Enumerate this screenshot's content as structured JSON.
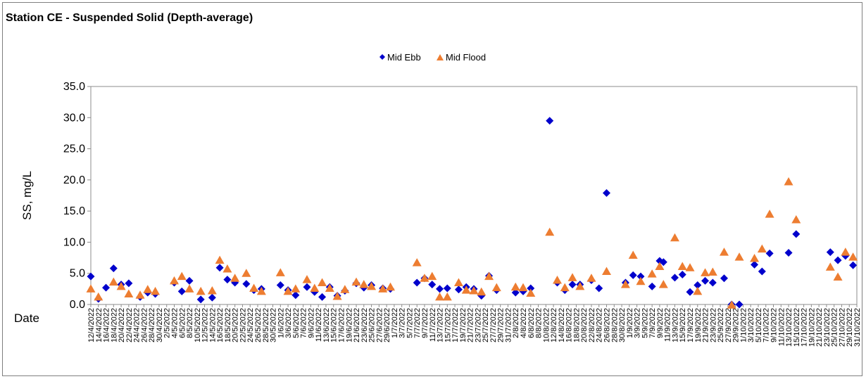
{
  "chart_data": {
    "type": "scatter",
    "title": "Station CE - Suspended Solid (Depth-average)",
    "ylabel": "SS, mg/L",
    "xlabel": "Date",
    "ylim": [
      0,
      35
    ],
    "yticks": [
      "0.0",
      "5.0",
      "10.0",
      "15.0",
      "20.0",
      "25.0",
      "30.0",
      "35.0"
    ],
    "xlim": [
      "2022-04-12",
      "2022-10-31"
    ],
    "x_tick_labels": [
      "12/4/2022",
      "14/4/2022",
      "16/4/2022",
      "18/4/2022",
      "20/4/2022",
      "22/4/2022",
      "24/4/2022",
      "26/4/2022",
      "28/4/2022",
      "30/4/2022",
      "2/5/2022",
      "4/5/2022",
      "6/5/2022",
      "8/5/2022",
      "10/5/2022",
      "12/5/2022",
      "14/5/2022",
      "16/5/2022",
      "18/5/2022",
      "20/5/2022",
      "22/5/2022",
      "24/5/2022",
      "26/5/2022",
      "28/5/2022",
      "30/5/2022",
      "1/6/2022",
      "3/6/2022",
      "5/6/2022",
      "7/6/2022",
      "9/6/2022",
      "11/6/2022",
      "13/6/2022",
      "15/6/2022",
      "17/6/2022",
      "19/6/2022",
      "21/6/2022",
      "23/6/2022",
      "25/6/2022",
      "27/6/2022",
      "29/6/2022",
      "1/7/2022",
      "3/7/2022",
      "5/7/2022",
      "7/7/2022",
      "9/7/2022",
      "11/7/2022",
      "13/7/2022",
      "15/7/2022",
      "17/7/2022",
      "19/7/2022",
      "21/7/2022",
      "23/7/2022",
      "25/7/2022",
      "27/7/2022",
      "29/7/2022",
      "31/7/2022",
      "2/8/2022",
      "4/8/2022",
      "6/8/2022",
      "8/8/2022",
      "10/8/2022",
      "12/8/2022",
      "14/8/2022",
      "16/8/2022",
      "18/8/2022",
      "20/8/2022",
      "22/8/2022",
      "24/8/2022",
      "26/8/2022",
      "28/8/2022",
      "30/8/2022",
      "1/9/2022",
      "3/9/2022",
      "5/9/2022",
      "7/9/2022",
      "9/9/2022",
      "11/9/2022",
      "13/9/2022",
      "15/9/2022",
      "17/9/2022",
      "19/9/2022",
      "21/9/2022",
      "23/9/2022",
      "25/9/2022",
      "27/9/2022",
      "29/9/2022",
      "1/10/2022",
      "3/10/2022",
      "5/10/2022",
      "7/10/2022",
      "9/10/2022",
      "11/10/2022",
      "13/10/2022",
      "15/10/2022",
      "17/10/2022",
      "19/10/2022",
      "21/10/2022",
      "23/10/2022",
      "25/10/2022",
      "27/10/2022",
      "29/10/2022",
      "31/10/2022"
    ],
    "legend": {
      "placement": "top-center",
      "entries": [
        "Mid Ebb",
        "Mid Flood"
      ]
    },
    "grid": false,
    "series": [
      {
        "name": "Mid Ebb",
        "marker": "diamond",
        "color": "#0000cc",
        "points": [
          [
            "2022-04-12",
            4.5
          ],
          [
            "2022-04-14",
            0.9
          ],
          [
            "2022-04-16",
            2.7
          ],
          [
            "2022-04-18",
            5.8
          ],
          [
            "2022-04-20",
            3.2
          ],
          [
            "2022-04-22",
            3.4
          ],
          [
            "2022-04-25",
            1.2
          ],
          [
            "2022-04-27",
            1.9
          ],
          [
            "2022-04-29",
            1.7
          ],
          [
            "2022-05-04",
            3.5
          ],
          [
            "2022-05-06",
            2.1
          ],
          [
            "2022-05-08",
            3.8
          ],
          [
            "2022-05-11",
            0.8
          ],
          [
            "2022-05-14",
            1.1
          ],
          [
            "2022-05-16",
            5.9
          ],
          [
            "2022-05-18",
            4.0
          ],
          [
            "2022-05-20",
            3.5
          ],
          [
            "2022-05-23",
            3.3
          ],
          [
            "2022-05-25",
            2.3
          ],
          [
            "2022-05-27",
            2.5
          ],
          [
            "2022-06-01",
            3.1
          ],
          [
            "2022-06-03",
            2.3
          ],
          [
            "2022-06-05",
            1.5
          ],
          [
            "2022-06-08",
            2.8
          ],
          [
            "2022-06-10",
            2.0
          ],
          [
            "2022-06-12",
            1.2
          ],
          [
            "2022-06-14",
            2.8
          ],
          [
            "2022-06-16",
            1.4
          ],
          [
            "2022-06-18",
            2.2
          ],
          [
            "2022-06-21",
            3.4
          ],
          [
            "2022-06-23",
            2.7
          ],
          [
            "2022-06-25",
            3.1
          ],
          [
            "2022-06-28",
            2.6
          ],
          [
            "2022-06-30",
            2.5
          ],
          [
            "2022-07-07",
            3.5
          ],
          [
            "2022-07-09",
            4.2
          ],
          [
            "2022-07-11",
            3.2
          ],
          [
            "2022-07-13",
            2.5
          ],
          [
            "2022-07-15",
            2.6
          ],
          [
            "2022-07-18",
            2.4
          ],
          [
            "2022-07-20",
            2.8
          ],
          [
            "2022-07-22",
            2.5
          ],
          [
            "2022-07-24",
            1.4
          ],
          [
            "2022-07-26",
            4.6
          ],
          [
            "2022-07-28",
            2.3
          ],
          [
            "2022-08-02",
            1.9
          ],
          [
            "2022-08-04",
            2.1
          ],
          [
            "2022-08-06",
            2.6
          ],
          [
            "2022-08-11",
            29.5
          ],
          [
            "2022-08-13",
            3.5
          ],
          [
            "2022-08-15",
            2.3
          ],
          [
            "2022-08-17",
            3.2
          ],
          [
            "2022-08-19",
            3.2
          ],
          [
            "2022-08-22",
            3.9
          ],
          [
            "2022-08-24",
            2.6
          ],
          [
            "2022-08-26",
            17.9
          ],
          [
            "2022-08-31",
            3.5
          ],
          [
            "2022-09-02",
            4.7
          ],
          [
            "2022-09-04",
            4.5
          ],
          [
            "2022-09-07",
            2.9
          ],
          [
            "2022-09-09",
            7.0
          ],
          [
            "2022-09-10",
            6.8
          ],
          [
            "2022-09-13",
            4.3
          ],
          [
            "2022-09-15",
            4.8
          ],
          [
            "2022-09-17",
            2.0
          ],
          [
            "2022-09-19",
            3.1
          ],
          [
            "2022-09-21",
            3.8
          ],
          [
            "2022-09-23",
            3.5
          ],
          [
            "2022-09-26",
            4.2
          ],
          [
            "2022-09-28",
            0.0
          ],
          [
            "2022-09-30",
            0.0
          ],
          [
            "2022-10-04",
            6.4
          ],
          [
            "2022-10-06",
            5.3
          ],
          [
            "2022-10-08",
            8.2
          ],
          [
            "2022-10-13",
            8.3
          ],
          [
            "2022-10-15",
            11.3
          ],
          [
            "2022-10-24",
            8.4
          ],
          [
            "2022-10-26",
            7.1
          ],
          [
            "2022-10-28",
            7.8
          ],
          [
            "2022-10-30",
            6.3
          ]
        ]
      },
      {
        "name": "Mid Flood",
        "marker": "triangle",
        "color": "#ed7d31",
        "points": [
          [
            "2022-04-12",
            2.5
          ],
          [
            "2022-04-14",
            1.2
          ],
          [
            "2022-04-18",
            3.6
          ],
          [
            "2022-04-20",
            2.9
          ],
          [
            "2022-04-22",
            1.7
          ],
          [
            "2022-04-25",
            1.5
          ],
          [
            "2022-04-27",
            2.4
          ],
          [
            "2022-04-29",
            2.1
          ],
          [
            "2022-05-04",
            3.8
          ],
          [
            "2022-05-06",
            4.5
          ],
          [
            "2022-05-08",
            2.5
          ],
          [
            "2022-05-11",
            2.1
          ],
          [
            "2022-05-14",
            2.2
          ],
          [
            "2022-05-16",
            7.1
          ],
          [
            "2022-05-18",
            5.7
          ],
          [
            "2022-05-20",
            4.2
          ],
          [
            "2022-05-23",
            5.0
          ],
          [
            "2022-05-25",
            2.6
          ],
          [
            "2022-05-27",
            2.1
          ],
          [
            "2022-06-01",
            5.1
          ],
          [
            "2022-06-03",
            2.1
          ],
          [
            "2022-06-05",
            2.5
          ],
          [
            "2022-06-08",
            4.0
          ],
          [
            "2022-06-10",
            2.6
          ],
          [
            "2022-06-12",
            3.5
          ],
          [
            "2022-06-14",
            2.6
          ],
          [
            "2022-06-16",
            1.3
          ],
          [
            "2022-06-18",
            2.4
          ],
          [
            "2022-06-21",
            3.6
          ],
          [
            "2022-06-23",
            3.2
          ],
          [
            "2022-06-25",
            2.9
          ],
          [
            "2022-06-28",
            2.5
          ],
          [
            "2022-06-30",
            2.8
          ],
          [
            "2022-07-07",
            6.7
          ],
          [
            "2022-07-09",
            4.2
          ],
          [
            "2022-07-11",
            4.5
          ],
          [
            "2022-07-13",
            1.2
          ],
          [
            "2022-07-15",
            1.2
          ],
          [
            "2022-07-18",
            3.5
          ],
          [
            "2022-07-20",
            2.3
          ],
          [
            "2022-07-22",
            2.2
          ],
          [
            "2022-07-24",
            2.0
          ],
          [
            "2022-07-26",
            4.5
          ],
          [
            "2022-07-28",
            2.7
          ],
          [
            "2022-08-02",
            2.8
          ],
          [
            "2022-08-04",
            2.7
          ],
          [
            "2022-08-06",
            1.8
          ],
          [
            "2022-08-11",
            11.6
          ],
          [
            "2022-08-13",
            3.9
          ],
          [
            "2022-08-15",
            2.7
          ],
          [
            "2022-08-17",
            4.3
          ],
          [
            "2022-08-19",
            2.9
          ],
          [
            "2022-08-22",
            4.2
          ],
          [
            "2022-08-26",
            5.3
          ],
          [
            "2022-08-31",
            3.2
          ],
          [
            "2022-09-02",
            7.9
          ],
          [
            "2022-09-04",
            3.7
          ],
          [
            "2022-09-07",
            4.9
          ],
          [
            "2022-09-09",
            6.1
          ],
          [
            "2022-09-10",
            3.2
          ],
          [
            "2022-09-13",
            10.7
          ],
          [
            "2022-09-15",
            6.1
          ],
          [
            "2022-09-17",
            5.9
          ],
          [
            "2022-09-19",
            2.1
          ],
          [
            "2022-09-21",
            5.1
          ],
          [
            "2022-09-23",
            5.2
          ],
          [
            "2022-09-26",
            8.4
          ],
          [
            "2022-09-28",
            -0.1
          ],
          [
            "2022-09-30",
            7.6
          ],
          [
            "2022-10-04",
            7.4
          ],
          [
            "2022-10-06",
            8.9
          ],
          [
            "2022-10-08",
            14.5
          ],
          [
            "2022-10-13",
            19.7
          ],
          [
            "2022-10-15",
            13.6
          ],
          [
            "2022-10-24",
            6.0
          ],
          [
            "2022-10-26",
            4.4
          ],
          [
            "2022-10-28",
            8.4
          ],
          [
            "2022-10-30",
            7.6
          ]
        ]
      }
    ]
  }
}
